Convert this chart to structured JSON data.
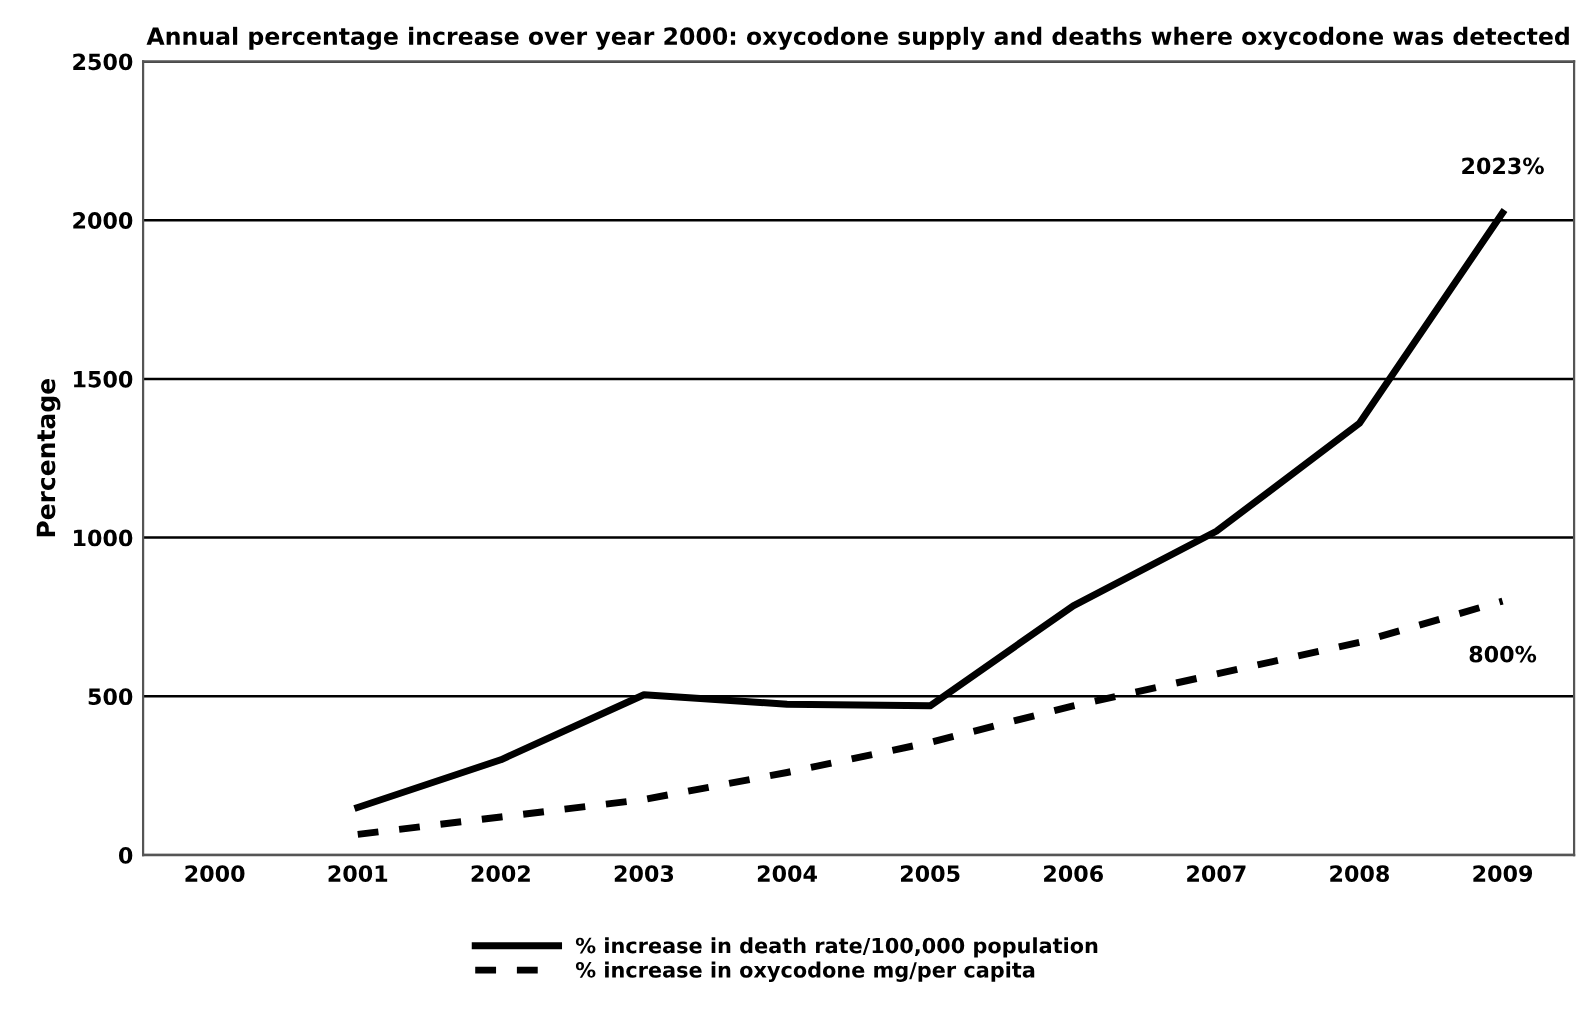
{
  "chart_data": {
    "type": "line",
    "title": "Annual percentage increase over year 2000: oxycodone supply and deaths where oxycodone was detected",
    "ylabel": "Percentage",
    "categories": [
      "2000",
      "2001",
      "2002",
      "2003",
      "2004",
      "2005",
      "2006",
      "2007",
      "2008",
      "2009"
    ],
    "series": [
      {
        "name": "% increase in death rate/100,000 population",
        "color": "#000000",
        "line_style": "solid",
        "values": [
          null,
          150,
          300,
          505,
          475,
          470,
          785,
          1020,
          1360,
          2023
        ]
      },
      {
        "name": "% increase in oxycodone mg/per capita",
        "color": "#000000",
        "line_style": "dashed",
        "values": [
          null,
          65,
          120,
          175,
          260,
          355,
          470,
          570,
          670,
          800
        ]
      }
    ],
    "annotations": [
      {
        "text": "2023%",
        "x": "2009",
        "y": 2023
      },
      {
        "text": "800%",
        "x": "2009",
        "y": 800
      }
    ],
    "ylim": [
      0,
      2500
    ],
    "yticks": [
      0,
      500,
      1000,
      1500,
      2000,
      2500
    ],
    "grid": "y",
    "legend": "bottom",
    "marker": "none"
  }
}
